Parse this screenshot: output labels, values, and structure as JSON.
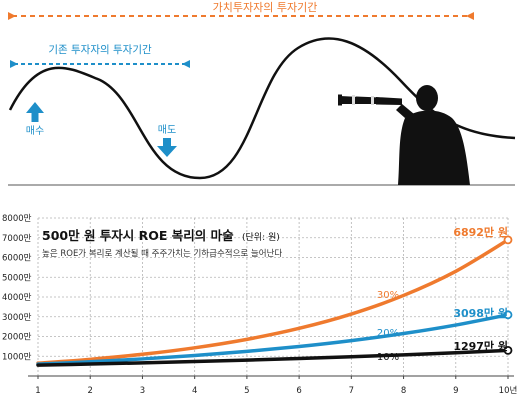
{
  "colors": {
    "orange": "#ef7a2e",
    "blue": "#1e8fc9",
    "black": "#111111",
    "grid": "#b3b3b3",
    "axis": "#444444",
    "wave": "#111111"
  },
  "illustration": {
    "value_period_label": "가치투자자의 투자기간",
    "existing_period_label": "기존 투자자의 투자기간",
    "buy_label": "매수",
    "sell_label": "매도",
    "person_icon": "person-with-telescope-icon",
    "arrow_up_icon": "arrow-up-icon",
    "arrow_down_icon": "arrow-down-icon"
  },
  "chart_data": {
    "type": "line",
    "title": "500만 원 투자시 ROE 복리의 마술",
    "unit_note": "(단위: 원)",
    "subtitle": "높은 ROE가 복리로 계산될 때 주주가치는 기하급수적으로 늘어난다",
    "x": [
      1,
      2,
      3,
      4,
      5,
      6,
      7,
      8,
      9,
      10
    ],
    "x_tick_labels": [
      "1",
      "2",
      "3",
      "4",
      "5",
      "6",
      "7",
      "8",
      "9",
      "10년"
    ],
    "y_tick_labels": [
      "1000만",
      "2000만",
      "3000만",
      "4000만",
      "5000만",
      "6000만",
      "7000만",
      "8000만"
    ],
    "y_ticks": [
      1000,
      2000,
      3000,
      4000,
      5000,
      6000,
      7000,
      8000
    ],
    "ylim": [
      0,
      8000
    ],
    "y_unit": "만 원",
    "grid": true,
    "series": [
      {
        "name": "30%",
        "color": "#ef7a2e",
        "values": [
          650,
          845,
          1099,
          1428,
          1856,
          2413,
          3137,
          4079,
          5302,
          6892
        ],
        "end_label": "6892만 원"
      },
      {
        "name": "20%",
        "color": "#1e8fc9",
        "values": [
          600,
          720,
          864,
          1037,
          1244,
          1493,
          1792,
          2150,
          2580,
          3098
        ],
        "end_label": "3098만 원"
      },
      {
        "name": "10%",
        "color": "#111111",
        "values": [
          550,
          605,
          666,
          732,
          805,
          886,
          974,
          1072,
          1179,
          1297
        ],
        "end_label": "1297만 원"
      }
    ]
  }
}
